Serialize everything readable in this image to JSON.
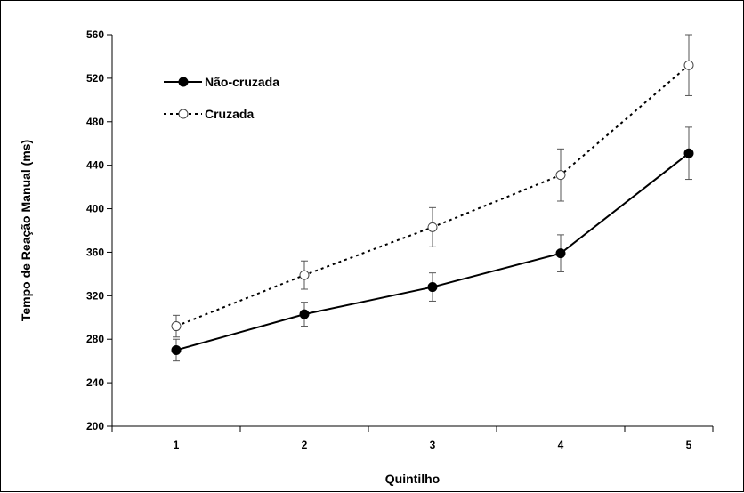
{
  "chart_data": {
    "type": "line",
    "title": "",
    "xlabel": "Quintilho",
    "ylabel": "Tempo de Reação Manual (ms)",
    "categories": [
      "1",
      "2",
      "3",
      "4",
      "5"
    ],
    "ylim": [
      200,
      560
    ],
    "yticks": [
      200,
      240,
      280,
      320,
      360,
      400,
      440,
      480,
      520,
      560
    ],
    "grid": false,
    "legend_position": "top-left",
    "series": [
      {
        "name": "Não-cruzada",
        "values": [
          270,
          303,
          328,
          359,
          451
        ],
        "error": [
          10,
          11,
          13,
          17,
          24
        ],
        "line_style": "solid",
        "marker": "filled-circle",
        "color": "#000000"
      },
      {
        "name": "Cruzada",
        "values": [
          292,
          339,
          383,
          431,
          532
        ],
        "error": [
          10,
          13,
          18,
          24,
          28
        ],
        "line_style": "dotted",
        "marker": "open-circle",
        "color": "#000000"
      }
    ]
  }
}
